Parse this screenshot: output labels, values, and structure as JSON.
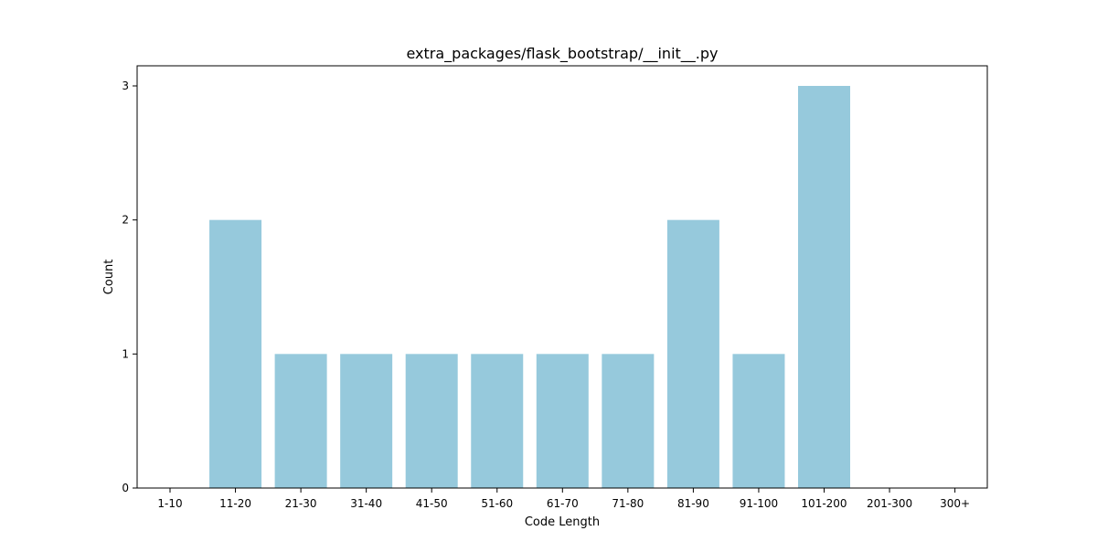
{
  "chart_data": {
    "type": "bar",
    "title": "extra_packages/flask_bootstrap/__init__.py",
    "xlabel": "Code Length",
    "ylabel": "Count",
    "categories": [
      "1-10",
      "11-20",
      "21-30",
      "31-40",
      "41-50",
      "51-60",
      "61-70",
      "71-80",
      "81-90",
      "91-100",
      "101-200",
      "201-300",
      "300+"
    ],
    "values": [
      0,
      2,
      1,
      1,
      1,
      1,
      1,
      1,
      2,
      1,
      3,
      0,
      0
    ],
    "ylim": [
      0,
      3.15
    ],
    "yticks": [
      0,
      1,
      2,
      3
    ],
    "bar_color": "#96c9dc",
    "grid": false,
    "legend": "none"
  }
}
